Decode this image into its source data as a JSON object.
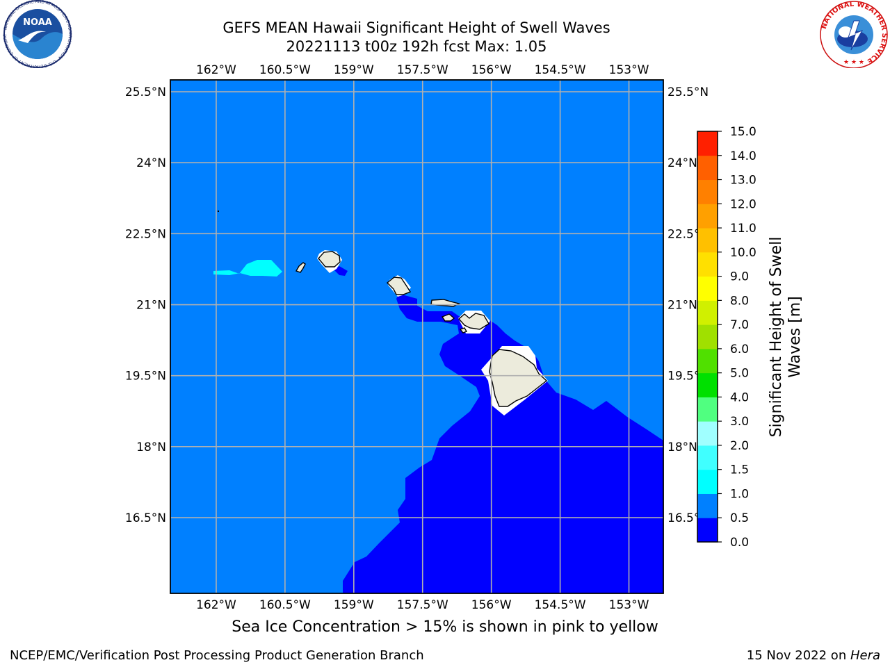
{
  "header": {
    "title_line1": "GEFS MEAN Hawaii Significant Height of Swell Waves",
    "title_line2": "20221113 t00z 192h fcst   Max: 1.05"
  },
  "map": {
    "projection": "lat-lon",
    "lon_range": [
      -163.0,
      -152.25
    ],
    "lat_range": [
      14.9,
      25.75
    ],
    "lon_ticks": [
      {
        "value": -162.0,
        "label": "162°W"
      },
      {
        "value": -160.5,
        "label": "160.5°W"
      },
      {
        "value": -159.0,
        "label": "159°W"
      },
      {
        "value": -157.5,
        "label": "157.5°W"
      },
      {
        "value": -156.0,
        "label": "156°W"
      },
      {
        "value": -154.5,
        "label": "154.5°W"
      },
      {
        "value": -153.0,
        "label": "153°W"
      }
    ],
    "lat_ticks": [
      {
        "value": 25.5,
        "label": "25.5°N"
      },
      {
        "value": 24.0,
        "label": "24°N"
      },
      {
        "value": 22.5,
        "label": "22.5°N"
      },
      {
        "value": 21.0,
        "label": "21°N"
      },
      {
        "value": 19.5,
        "label": "19.5°N"
      },
      {
        "value": 18.0,
        "label": "18°N"
      },
      {
        "value": 16.5,
        "label": "16.5°N"
      }
    ],
    "grid": true,
    "colors": {
      "ocean_0_5_to_1_0": "#0080ff",
      "ocean_0_0_to_0_5": "#0000ff",
      "swell_1_0_to_1_5": "#00ffff",
      "land": "#ecebdc",
      "no_data": "#ffffff",
      "coastline": "#000000",
      "grid": "#b0b0b0"
    }
  },
  "colorbar": {
    "label_line1": "Significant Height of Swell",
    "label_line2": "Waves [m]",
    "ticks": [
      "0.0",
      "0.5",
      "1.0",
      "1.5",
      "2.0",
      "3.0",
      "4.0",
      "5.0",
      "6.0",
      "7.0",
      "8.0",
      "9.0",
      "10.0",
      "11.0",
      "12.0",
      "13.0",
      "14.0",
      "15.0"
    ],
    "colors": [
      "#0000ff",
      "#0080ff",
      "#00ffff",
      "#40ffff",
      "#a0ffff",
      "#50ff80",
      "#00e000",
      "#50e000",
      "#a0e000",
      "#d0f000",
      "#ffff00",
      "#ffe000",
      "#ffc000",
      "#ffa000",
      "#ff8000",
      "#ff6000",
      "#ff2000"
    ]
  },
  "footer": {
    "note": "Sea Ice Concentration > 15% is shown in pink to yellow",
    "credit_left": "NCEP/EMC/Verification Post Processing Product Generation Branch",
    "credit_right_date": "15 Nov 2022 on ",
    "credit_right_host": "Hera"
  },
  "logos": {
    "left": {
      "icon": "noaa-logo-icon",
      "text": "NOAA",
      "ring_text": "NATIONAL OCEANIC AND ATMOSPHERIC ADMINISTRATION · U.S. DEPARTMENT OF COMMERCE"
    },
    "right": {
      "icon": "nws-logo-icon",
      "ring_text": "NATIONAL WEATHER SERVICE"
    }
  }
}
